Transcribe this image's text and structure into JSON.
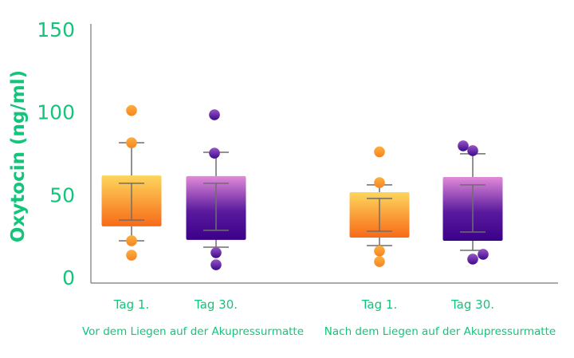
{
  "chart_data": {
    "type": "box",
    "title": "",
    "ylabel": "Oxytocin (ng/ml)",
    "xlabel": "",
    "ylim": [
      0,
      150
    ],
    "yticks": [
      0,
      50,
      100,
      150
    ],
    "grid": false,
    "groups": [
      {
        "label": "Vor dem Liegen auf der Akupressurmatte",
        "boxes": [
          {
            "label": "Tag 1.",
            "color": "orange",
            "box": [
              30.9,
              61.7
            ],
            "inner_lines": [
              34.7,
              57
            ],
            "whiskers": [
              22.2,
              81.5
            ],
            "points": [
              101,
              81.5,
              22.2,
              13.5
            ]
          },
          {
            "label": "Tag 30.",
            "color": "purple",
            "box": [
              22.7,
              61.3
            ],
            "inner_lines": [
              28.5,
              57
            ],
            "whiskers": [
              18.3,
              75.7
            ],
            "points": [
              98.4,
              75.2,
              15,
              7.7
            ]
          }
        ]
      },
      {
        "label": "Nach dem Liegen auf der Akupressurmatte",
        "boxes": [
          {
            "label": "Tag 1.",
            "color": "orange",
            "box": [
              24.1,
              51.6
            ],
            "inner_lines": [
              28,
              47.8
            ],
            "whiskers": [
              19.3,
              56
            ],
            "points": [
              76,
              57.4,
              16,
              9.6
            ]
          },
          {
            "label": "Tag 30.",
            "color": "purple",
            "box": [
              22.2,
              60.8
            ],
            "inner_lines": [
              27.5,
              56
            ],
            "whiskers": [
              16.4,
              74.8
            ],
            "points": [
              79.6,
              76.7,
              14,
              11.1
            ]
          }
        ]
      }
    ],
    "colors": {
      "text": "#13c57a",
      "orange_top": "#fdd65c",
      "orange_bottom": "#f76a18",
      "purple_top": "#e18ad8",
      "purple_bottom": "#3a0088",
      "whisker": "#6e6e6e"
    }
  }
}
